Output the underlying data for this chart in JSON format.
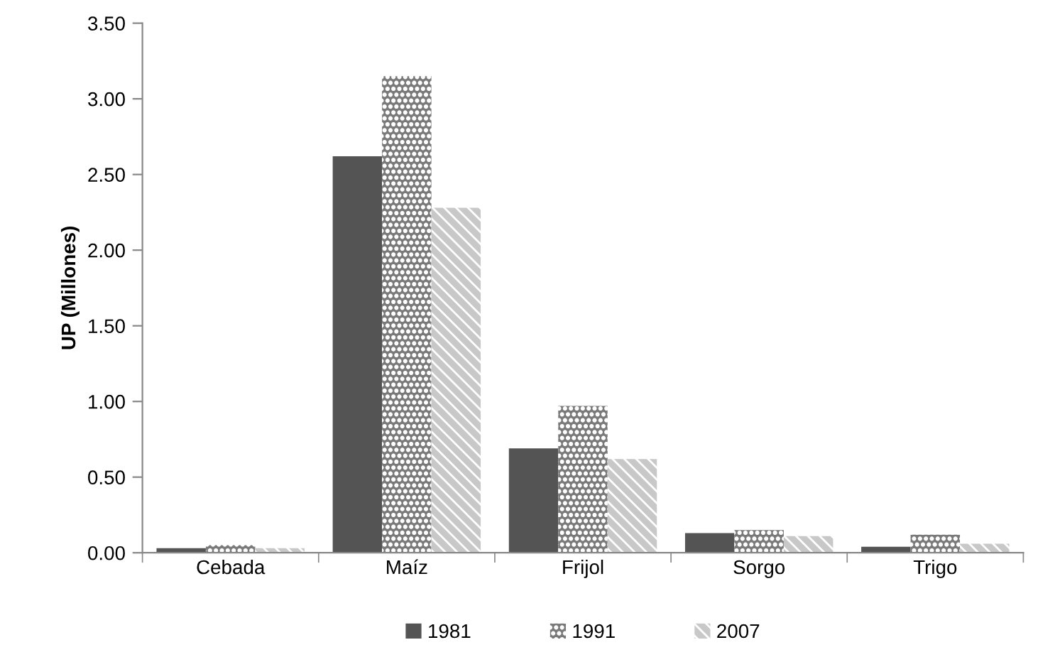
{
  "chart_data": {
    "type": "bar",
    "ylabel": "UP (Millones)",
    "categories": [
      "Cebada",
      "Maíz",
      "Frijol",
      "Sorgo",
      "Trigo"
    ],
    "series": [
      {
        "name": "1981",
        "color": "#545454",
        "values": [
          0.03,
          2.62,
          0.69,
          0.13,
          0.04
        ]
      },
      {
        "name": "1991",
        "color": "#7a7a7a",
        "values": [
          0.05,
          3.15,
          0.97,
          0.15,
          0.12
        ]
      },
      {
        "name": "2007",
        "color": "#c8c8c8",
        "values": [
          0.03,
          2.28,
          0.62,
          0.11,
          0.06
        ]
      }
    ],
    "ylim": [
      0,
      3.5
    ],
    "yticks": [
      {
        "value": 0,
        "label": "0.00"
      },
      {
        "value": 0.5,
        "label": "0.50"
      },
      {
        "value": 1,
        "label": "1.00"
      },
      {
        "value": 1.5,
        "label": "1.50"
      },
      {
        "value": 2,
        "label": "2.00"
      },
      {
        "value": 2.5,
        "label": "2.50"
      },
      {
        "value": 3,
        "label": "3.00"
      },
      {
        "value": 3.5,
        "label": "3.50"
      }
    ],
    "grid": false,
    "legend": "bottom"
  }
}
